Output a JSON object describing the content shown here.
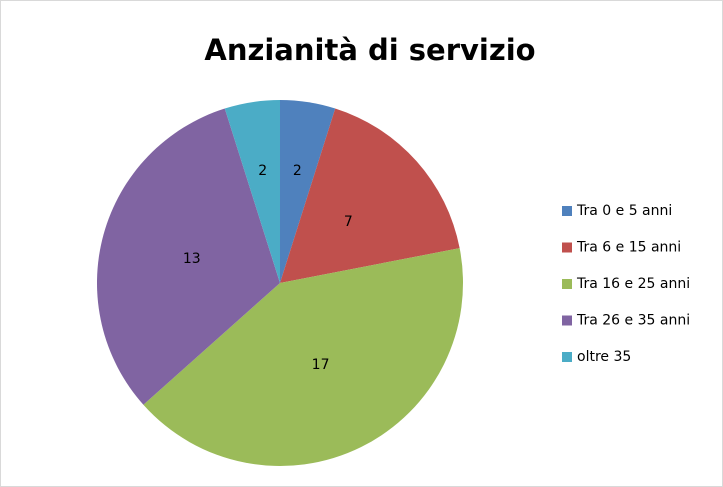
{
  "chart_data": {
    "type": "pie",
    "title": "Anzianità di servizio",
    "categories": [
      "Tra 0 e 5 anni",
      "Tra 6 e 15 anni",
      "Tra 16 e 25 anni",
      "Tra 26 e 35 anni",
      "oltre 35"
    ],
    "values": [
      2,
      7,
      17,
      13,
      2
    ],
    "colors": [
      "#4f81bd",
      "#c0504d",
      "#9bbb59",
      "#8064a2",
      "#4bacc6"
    ],
    "legend": "right"
  }
}
